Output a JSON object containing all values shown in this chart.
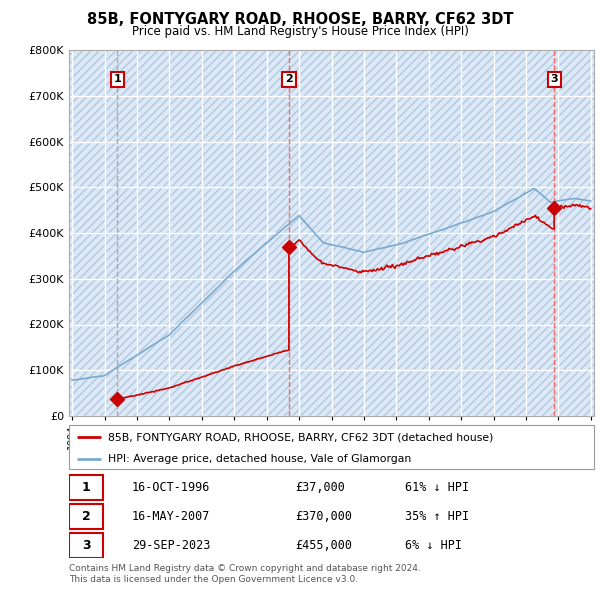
{
  "title": "85B, FONTYGARY ROAD, RHOOSE, BARRY, CF62 3DT",
  "subtitle": "Price paid vs. HM Land Registry's House Price Index (HPI)",
  "legend_label_red": "85B, FONTYGARY ROAD, RHOOSE, BARRY, CF62 3DT (detached house)",
  "legend_label_blue": "HPI: Average price, detached house, Vale of Glamorgan",
  "transactions": [
    {
      "num": 1,
      "date_str": "16-OCT-1996",
      "price": 37000,
      "pct": "61%",
      "dir": "↓",
      "year": 1996.79
    },
    {
      "num": 2,
      "date_str": "16-MAY-2007",
      "price": 370000,
      "pct": "35%",
      "dir": "↑",
      "year": 2007.37
    },
    {
      "num": 3,
      "date_str": "29-SEP-2023",
      "price": 455000,
      "pct": "6%",
      "dir": "↓",
      "year": 2023.74
    }
  ],
  "footer1": "Contains HM Land Registry data © Crown copyright and database right 2024.",
  "footer2": "This data is licensed under the Open Government Licence v3.0.",
  "ylim": [
    0,
    800000
  ],
  "xlim_start": 1993.8,
  "xlim_end": 2026.2,
  "bg_hatch_color": "#c8d8e8",
  "bg_fill_color": "#dce8f5",
  "grid_color": "#bbccdd",
  "red_color": "#cc0000",
  "blue_color": "#7aaace",
  "vline_color1": "#aaaaaa",
  "vline_color23": "#ff6666",
  "dot_color": "#cc0000"
}
